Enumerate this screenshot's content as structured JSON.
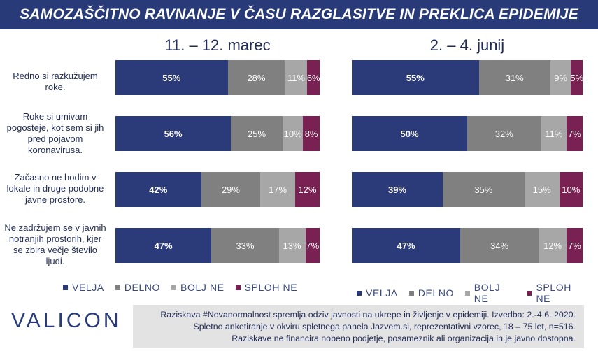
{
  "title": "SAMOZAŠČITNO RAVNANJE V ČASU RAZGLASITVE IN PREKLICA EPIDEMIJE",
  "colors": {
    "velja": "#2b3a78",
    "delno": "#808080",
    "bolj_ne": "#a7a7a7",
    "sploh_ne": "#7a2153",
    "header": "#283a78"
  },
  "chart_data": [
    {
      "type": "bar",
      "stacked": true,
      "orientation": "horizontal",
      "title": "11. – 12. marec",
      "categories": [
        "Redno si razkužujem roke.",
        "Roke si umivam pogosteje, kot sem si jih pred pojavom koronavirusa.",
        "Začasno ne hodim v lokale in druge podobne javne prostore.",
        "Ne zadržujem se v javnih notranjih prostorih, kjer se zbira večje število ljudi."
      ],
      "series": [
        {
          "name": "VELJA",
          "values": [
            55,
            56,
            42,
            47
          ]
        },
        {
          "name": "DELNO",
          "values": [
            28,
            25,
            29,
            33
          ]
        },
        {
          "name": "BOLJ NE",
          "values": [
            11,
            10,
            17,
            13
          ]
        },
        {
          "name": "SPLOH NE",
          "values": [
            6,
            8,
            12,
            7
          ]
        }
      ],
      "unit": "%"
    },
    {
      "type": "bar",
      "stacked": true,
      "orientation": "horizontal",
      "title": "2. – 4. junij",
      "categories": [
        "Redno si razkužujem roke.",
        "Roke si umivam pogosteje, kot sem si jih pred pojavom koronavirusa.",
        "Začasno ne hodim v lokale in druge podobne javne prostore.",
        "Ne zadržujem se v javnih notranjih prostorih, kjer se zbira večje število ljudi."
      ],
      "series": [
        {
          "name": "VELJA",
          "values": [
            55,
            50,
            39,
            47
          ]
        },
        {
          "name": "DELNO",
          "values": [
            31,
            32,
            35,
            34
          ]
        },
        {
          "name": "BOLJ NE",
          "values": [
            9,
            11,
            15,
            12
          ]
        },
        {
          "name": "SPLOH NE",
          "values": [
            5,
            7,
            10,
            7
          ]
        }
      ],
      "unit": "%"
    }
  ],
  "row_labels": [
    [
      "Redno si razkužujem",
      "roke."
    ],
    [
      "Roke si umivam",
      "pogosteje, kot sem si jih",
      "pred pojavom",
      "koronavirusa."
    ],
    [
      "Začasno ne hodim v",
      "lokale in druge podobne",
      "javne prostore."
    ],
    [
      "Ne zadržujem se v javnih",
      "notranjih prostorih, kjer",
      "se zbira večje število",
      "ljudi."
    ]
  ],
  "legend": [
    "VELJA",
    "DELNO",
    "BOLJ NE",
    "SPLOH NE"
  ],
  "logo": "VALICON",
  "footer": [
    "Raziskava #Novanormalnost spremlja odziv javnosti na ukrepe in življenje v epidemiji. Izvedba: 2.-4.6. 2020.",
    "Spletno anketiranje v okviru spletnega panela Jazvem.si, reprezentativni vzorec, 18 – 75 let, n=516.",
    "Raziskave ne financira nobeno podjetje, posameznik ali organizacija in je javno dostopna."
  ]
}
